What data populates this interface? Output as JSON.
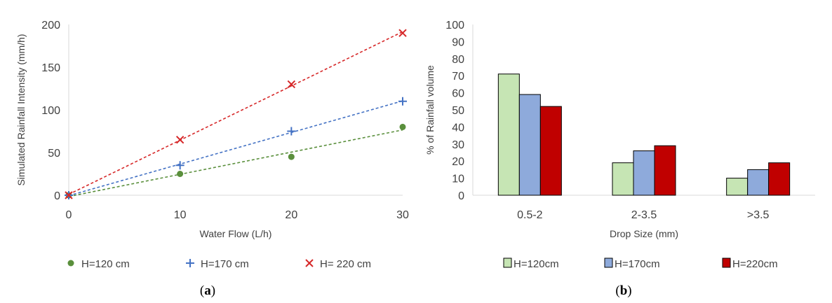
{
  "chart_data": [
    {
      "type": "scatter",
      "panel_label": "a",
      "xlabel": "Water Flow (L/h)",
      "ylabel": "Simulated Rainfall Intensity (mm/h)",
      "xlim": [
        0,
        30
      ],
      "ylim": [
        0,
        200
      ],
      "xticks": [
        0,
        10,
        20,
        30
      ],
      "yticks": [
        0,
        50,
        100,
        150,
        200
      ],
      "grid": false,
      "legend_position": "bottom",
      "trendlines": "dashed linear",
      "series": [
        {
          "name": "H=120 cm",
          "marker": "circle",
          "color": "#5a8f3c",
          "x": [
            0,
            10,
            20,
            30
          ],
          "y": [
            0,
            25,
            45,
            80
          ]
        },
        {
          "name": "H=170 cm",
          "marker": "plus",
          "color": "#4472c4",
          "x": [
            0,
            10,
            20,
            30
          ],
          "y": [
            0,
            35,
            75,
            110
          ]
        },
        {
          "name": "H= 220 cm",
          "marker": "x",
          "color": "#d62728",
          "x": [
            0,
            10,
            20,
            30
          ],
          "y": [
            0,
            65,
            130,
            190
          ]
        }
      ]
    },
    {
      "type": "bar",
      "panel_label": "b",
      "xlabel": "Drop Size (mm)",
      "ylabel": "% of Rainfall volume",
      "ylim": [
        0,
        100
      ],
      "yticks": [
        0,
        10,
        20,
        30,
        40,
        50,
        60,
        70,
        80,
        90,
        100
      ],
      "grid": false,
      "legend_position": "bottom",
      "categories": [
        "0.5-2",
        "2-3.5",
        ">3.5"
      ],
      "series": [
        {
          "name": "H=120cm",
          "color": "#c6e5b4",
          "values": [
            71,
            19,
            10
          ]
        },
        {
          "name": "H=170cm",
          "color": "#8eaadb",
          "values": [
            59,
            26,
            15
          ]
        },
        {
          "name": "H=220cm",
          "color": "#c00000",
          "values": [
            52,
            29,
            19
          ]
        }
      ]
    }
  ]
}
